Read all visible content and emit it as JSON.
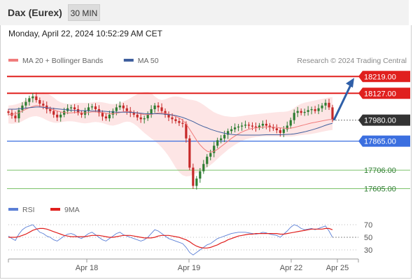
{
  "header": {
    "instrument": "Dax (Eurex)",
    "timeframe": "30 MIN",
    "datetime": "Monday, April 22, 2024 10:52:29 AM CET"
  },
  "colors": {
    "resistance": "#e0201e",
    "support_blue": "#3b6fe0",
    "support_green": "#7cc26a",
    "current": "#333333",
    "candle_up": "#2e7d32",
    "candle_down": "#c62828",
    "ma20": "#f07c7c",
    "ma50": "#3f5f9e",
    "bands_fill": "#fde0e0",
    "arrow": "#2f5fa8",
    "rsi": "#5b7fd6",
    "rsi_ma": "#e0201e"
  },
  "chart_data": [
    {
      "type": "candlestick",
      "legend": [
        {
          "label": "MA 20 + Bollinger Bands",
          "color": "#f07c7c"
        },
        {
          "label": "MA 50",
          "color": "#3f5f9e"
        }
      ],
      "legend_position": "top-left",
      "watermark": "Research © 2024 Trading Central",
      "ylim": [
        17580,
        18270
      ],
      "x_ticks": [
        "Apr 18",
        "Apr 19",
        "Apr 22",
        "Apr 25"
      ],
      "levels": [
        {
          "label": "18219.00",
          "value": 18219,
          "kind": "resistance"
        },
        {
          "label": "18127.00",
          "value": 18127,
          "kind": "resistance"
        },
        {
          "label": "17980.00",
          "value": 17980,
          "kind": "current"
        },
        {
          "label": "17865.00",
          "value": 17865,
          "kind": "support"
        },
        {
          "label": "17706.00",
          "value": 17706,
          "kind": "support"
        },
        {
          "label": "17605.00",
          "value": 17605,
          "kind": "support"
        }
      ],
      "close_series": [
        18020,
        18005,
        17990,
        18035,
        18060,
        18080,
        18100,
        18110,
        18090,
        18070,
        18060,
        18040,
        18030,
        18010,
        17995,
        18010,
        18030,
        18045,
        18050,
        18040,
        18020,
        18010,
        18030,
        18050,
        18055,
        18040,
        18020,
        18000,
        17990,
        18010,
        18030,
        18050,
        18060,
        18045,
        18030,
        18020,
        18010,
        17995,
        17985,
        17990,
        18010,
        18040,
        18060,
        18050,
        18030,
        18010,
        17995,
        17985,
        17975,
        17965,
        17960,
        17880,
        17720,
        17620,
        17660,
        17700,
        17740,
        17780,
        17800,
        17840,
        17870,
        17880,
        17900,
        17920,
        17930,
        17940,
        17945,
        17950,
        17955,
        17950,
        17945,
        17940,
        17950,
        17960,
        17950,
        17940,
        17935,
        17925,
        17910,
        17930,
        17950,
        17980,
        18020,
        18030,
        18020,
        18025,
        18035,
        18040,
        18030,
        18045,
        18060,
        18075,
        18050,
        17985
      ],
      "ma20": [
        18010,
        18012,
        18015,
        18020,
        18030,
        18040,
        18048,
        18055,
        18060,
        18058,
        18054,
        18048,
        18042,
        18036,
        18030,
        18025,
        18022,
        18020,
        18020,
        18022,
        18022,
        18020,
        18020,
        18022,
        18025,
        18025,
        18024,
        18022,
        18018,
        18015,
        18015,
        18018,
        18022,
        18026,
        18028,
        18026,
        18022,
        18018,
        18014,
        18010,
        18010,
        18012,
        18016,
        18020,
        18020,
        18018,
        18014,
        18008,
        18000,
        17992,
        17980,
        17960,
        17930,
        17900,
        17870,
        17845,
        17825,
        17810,
        17805,
        17810,
        17820,
        17835,
        17850,
        17865,
        17880,
        17893,
        17905,
        17915,
        17923,
        17930,
        17935,
        17938,
        17940,
        17942,
        17943,
        17943,
        17942,
        17940,
        17938,
        17936,
        17935,
        17936,
        17940,
        17945,
        17950,
        17955,
        17960,
        17965,
        17968,
        17972,
        17976,
        17980,
        17983,
        17984
      ],
      "ma50": [
        18040,
        18040,
        18040,
        18042,
        18044,
        18046,
        18048,
        18050,
        18052,
        18052,
        18050,
        18048,
        18046,
        18044,
        18042,
        18040,
        18038,
        18036,
        18034,
        18033,
        18032,
        18032,
        18032,
        18031,
        18030,
        18030,
        18030,
        18029,
        18028,
        18026,
        18025,
        18024,
        18024,
        18024,
        18024,
        18023,
        18022,
        18020,
        18018,
        18016,
        18015,
        18015,
        18015,
        18015,
        18014,
        18012,
        18010,
        18008,
        18005,
        18000,
        17995,
        17988,
        17980,
        17972,
        17962,
        17953,
        17945,
        17938,
        17930,
        17924,
        17918,
        17913,
        17908,
        17905,
        17902,
        17900,
        17899,
        17898,
        17898,
        17898,
        17898,
        17898,
        17898,
        17899,
        17900,
        17900,
        17900,
        17900,
        17900,
        17901,
        17902,
        17903,
        17905,
        17908,
        17912,
        17916,
        17921,
        17926,
        17932,
        17938,
        17945,
        17952,
        17958,
        17962
      ],
      "band_upper": [
        18060,
        18062,
        18066,
        18072,
        18080,
        18092,
        18102,
        18112,
        18122,
        18128,
        18132,
        18128,
        18118,
        18104,
        18088,
        18078,
        18072,
        18070,
        18070,
        18072,
        18075,
        18075,
        18074,
        18075,
        18078,
        18080,
        18080,
        18078,
        18074,
        18070,
        18068,
        18070,
        18075,
        18082,
        18090,
        18100,
        18112,
        18122,
        18130,
        18134,
        18135,
        18128,
        18110,
        18096,
        18090,
        18094,
        18102,
        18108,
        18110,
        18108,
        18102,
        18096,
        18092,
        18090,
        18085,
        18076,
        18064,
        18050,
        18036,
        18024,
        18015,
        18008,
        18003,
        18000,
        17998,
        17998,
        18000,
        18003,
        18006,
        18008,
        18010,
        18012,
        18014,
        18016,
        18018,
        18020,
        18022,
        18024,
        18025,
        18026,
        18028,
        18034,
        18046,
        18060,
        18070,
        18076,
        18080,
        18084,
        18088,
        18092,
        18096,
        18100,
        18104,
        18106
      ],
      "band_lower": [
        17962,
        17960,
        17962,
        17965,
        17975,
        17985,
        17995,
        18000,
        18002,
        17998,
        17990,
        17980,
        17972,
        17966,
        17965,
        17968,
        17972,
        17974,
        17974,
        17972,
        17968,
        17964,
        17962,
        17964,
        17968,
        17970,
        17968,
        17964,
        17958,
        17952,
        17950,
        17954,
        17960,
        17968,
        17972,
        17970,
        17960,
        17946,
        17928,
        17910,
        17895,
        17880,
        17866,
        17850,
        17830,
        17808,
        17782,
        17752,
        17720,
        17695,
        17678,
        17672,
        17674,
        17682,
        17690,
        17698,
        17708,
        17720,
        17735,
        17750,
        17768,
        17786,
        17802,
        17818,
        17832,
        17845,
        17856,
        17866,
        17874,
        17880,
        17884,
        17888,
        17890,
        17892,
        17892,
        17892,
        17892,
        17892,
        17891,
        17890,
        17890,
        17890,
        17892,
        17895,
        17898,
        17900,
        17902,
        17905,
        17908,
        17912,
        17916,
        17920,
        17924,
        17926
      ],
      "forecast": {
        "from": 17980,
        "to": 18219
      }
    },
    {
      "type": "line",
      "legend": [
        {
          "label": "RSI",
          "color": "#5b7fd6"
        },
        {
          "label": "9MA",
          "color": "#e0201e"
        }
      ],
      "ylim": [
        20,
        80
      ],
      "y_ticks": [
        "70",
        "50",
        "30"
      ],
      "series": [
        {
          "name": "RSI",
          "values": [
            52,
            48,
            45,
            55,
            62,
            66,
            68,
            70,
            64,
            58,
            56,
            52,
            50,
            46,
            44,
            48,
            52,
            55,
            56,
            54,
            50,
            48,
            52,
            56,
            58,
            54,
            50,
            46,
            44,
            48,
            52,
            56,
            58,
            54,
            52,
            50,
            48,
            46,
            44,
            46,
            50,
            56,
            62,
            60,
            56,
            52,
            48,
            46,
            44,
            42,
            40,
            34,
            26,
            22,
            26,
            30,
            34,
            38,
            40,
            44,
            48,
            50,
            52,
            54,
            56,
            57,
            58,
            58,
            58,
            57,
            56,
            55,
            56,
            58,
            57,
            55,
            54,
            53,
            50,
            55,
            60,
            66,
            70,
            68,
            64,
            62,
            63,
            64,
            62,
            64,
            66,
            68,
            60,
            50
          ]
        },
        {
          "name": "9MA",
          "values": [
            50,
            50,
            50,
            51,
            53,
            55,
            58,
            61,
            63,
            64,
            64,
            63,
            61,
            59,
            57,
            55,
            53,
            52,
            51,
            51,
            51,
            51,
            51,
            52,
            53,
            53,
            53,
            52,
            51,
            50,
            50,
            51,
            52,
            53,
            53,
            53,
            52,
            51,
            50,
            49,
            49,
            49,
            50,
            52,
            53,
            53,
            53,
            52,
            51,
            50,
            48,
            46,
            43,
            39,
            36,
            34,
            33,
            33,
            34,
            36,
            38,
            41,
            43,
            46,
            48,
            50,
            52,
            53,
            54,
            55,
            55,
            56,
            56,
            56,
            56,
            56,
            56,
            56,
            55,
            55,
            56,
            57,
            58,
            59,
            60,
            61,
            62,
            63,
            63,
            63,
            63,
            64,
            64,
            62
          ]
        }
      ]
    }
  ]
}
